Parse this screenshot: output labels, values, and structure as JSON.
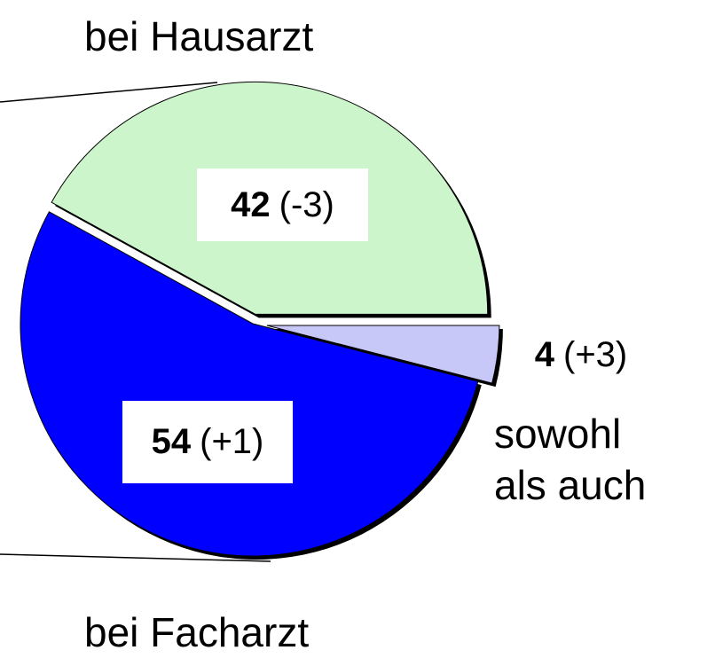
{
  "chart_data": {
    "type": "pie",
    "categories": [
      "bei Hausarzt",
      "bei Facharzt",
      "sowohl als auch"
    ],
    "values": [
      42,
      54,
      4
    ],
    "change_labels": [
      "(-3)",
      "(+1)",
      "(+3)"
    ],
    "colors": [
      "#ccf5cc",
      "#0000ff",
      "#c8c8f8"
    ]
  }
}
